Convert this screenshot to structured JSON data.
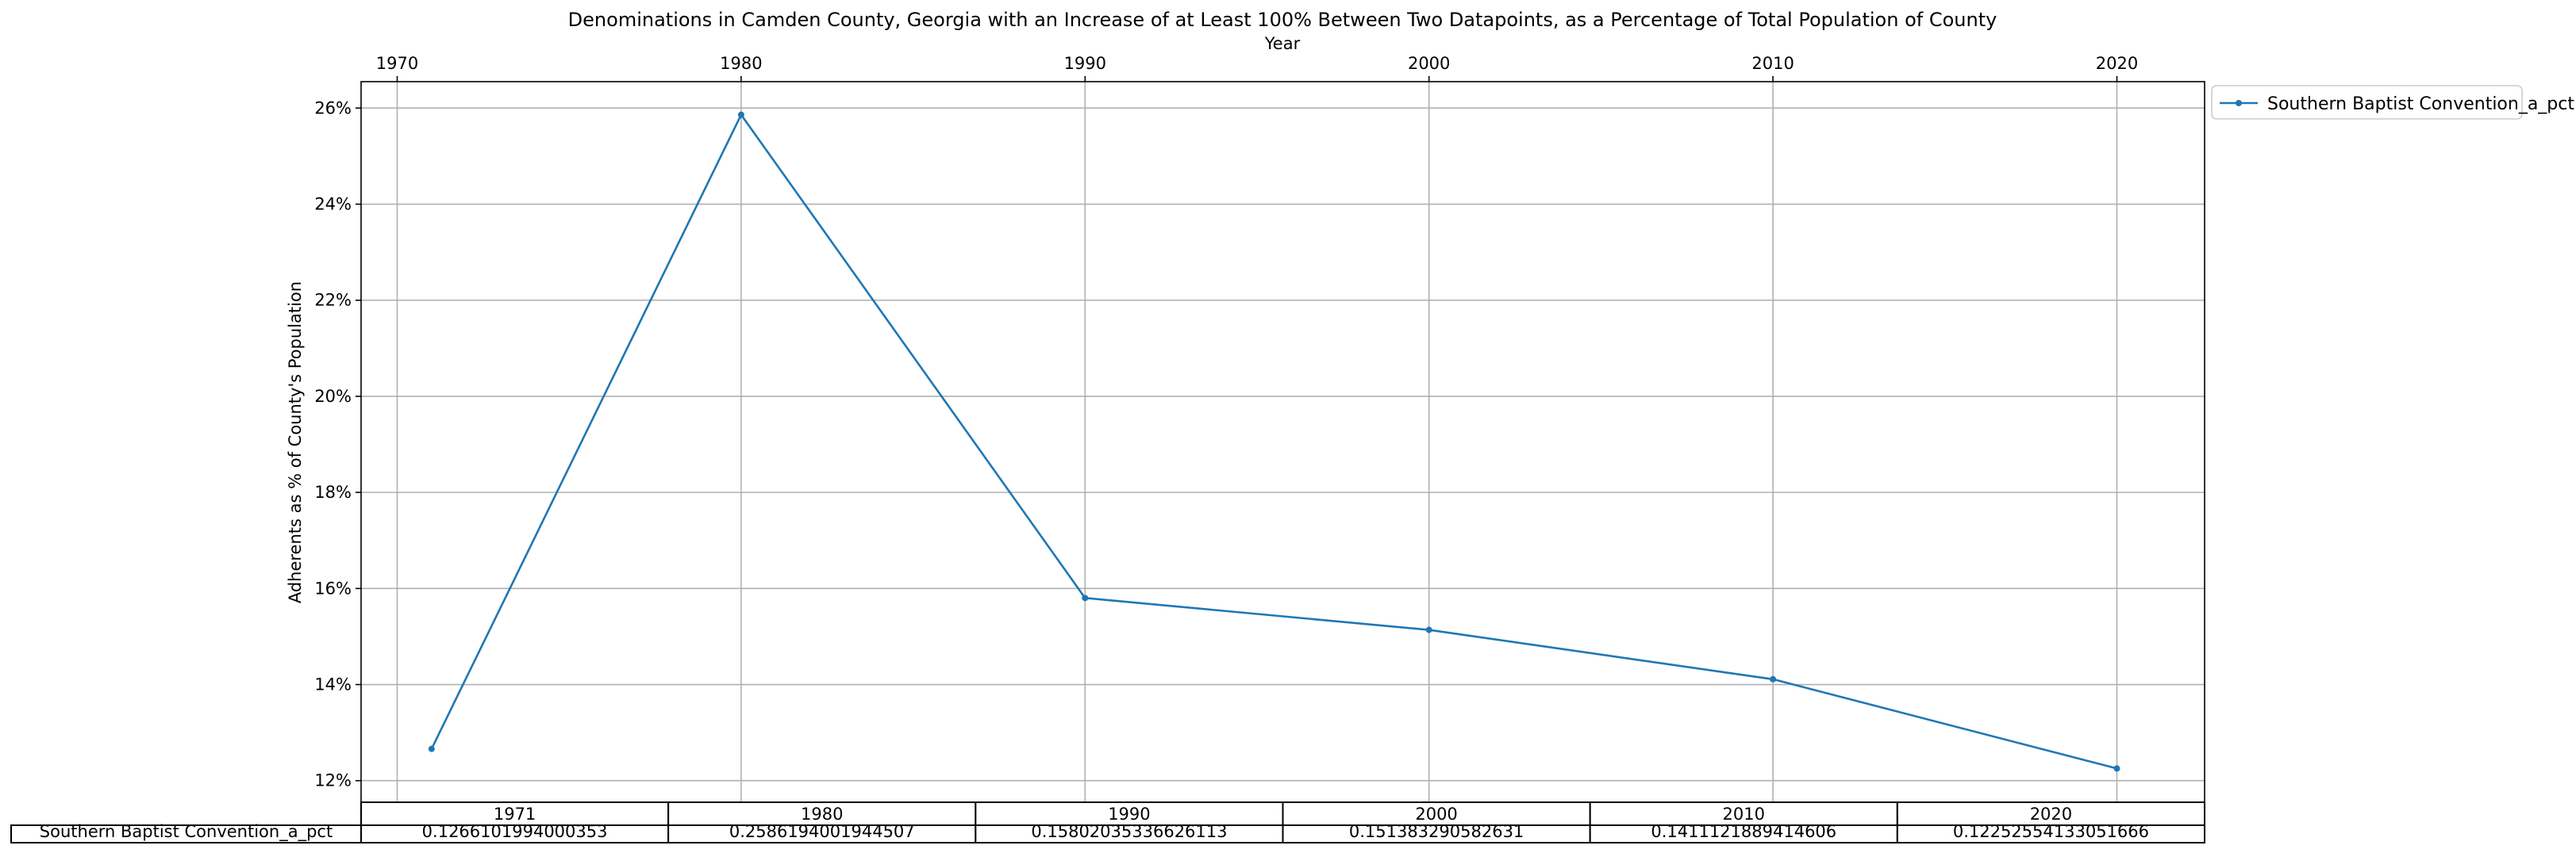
{
  "chart_data": {
    "type": "line",
    "title": "Denominations in Camden County, Georgia with an Increase of at Least 100% Between Two Datapoints, as a Percentage of Total Population of County",
    "xlabel": "Year",
    "ylabel": "Adherents as % of County's Population",
    "x": [
      1971,
      1980,
      1990,
      2000,
      2010,
      2020
    ],
    "xlim": [
      1968.95,
      2022.55
    ],
    "x_ticks": [
      1970,
      1980,
      1990,
      2000,
      2010,
      2020
    ],
    "x_tick_labels": [
      "1970",
      "1980",
      "1990",
      "2000",
      "2010",
      "2020"
    ],
    "x_axis_position": "top",
    "ylim": [
      0.1155,
      0.2655
    ],
    "y_ticks": [
      0.12,
      0.14,
      0.16,
      0.18,
      0.2,
      0.22,
      0.24,
      0.26
    ],
    "y_tick_labels": [
      "12%",
      "14%",
      "16%",
      "18%",
      "20%",
      "22%",
      "24%",
      "26%"
    ],
    "grid": true,
    "legend_position": "outside-top-right",
    "series": [
      {
        "name": "Southern Baptist Convention_a_pct",
        "color": "#1f77b4",
        "marker": "circle",
        "values": [
          0.1266101994000353,
          0.2586194001944507,
          0.15802035336626113,
          0.151383290582631,
          0.1411121889414606,
          0.12252554133051666
        ]
      }
    ],
    "table": {
      "col_labels": [
        "1971",
        "1980",
        "1990",
        "2000",
        "2010",
        "2020"
      ],
      "row_label": "Southern Baptist Convention_a_pct",
      "cells": [
        "0.1266101994000353",
        "0.2586194001944507",
        "0.15802035336626113",
        "0.151383290582631",
        "0.1411121889414606",
        "0.12252554133051666"
      ]
    }
  }
}
